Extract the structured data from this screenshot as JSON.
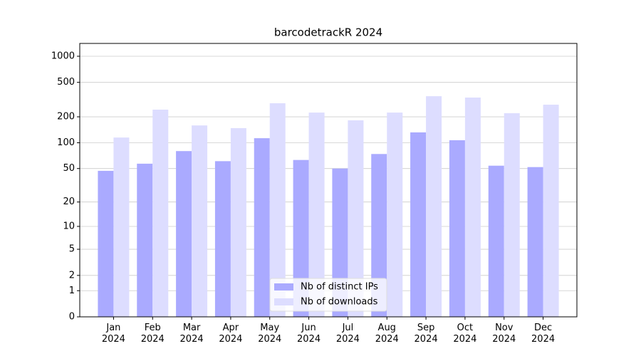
{
  "chart_data": {
    "type": "bar",
    "title": "barcodetrackR 2024",
    "categories": [
      "Jan\n2024",
      "Feb\n2024",
      "Mar\n2024",
      "Apr\n2024",
      "May\n2024",
      "Jun\n2024",
      "Jul\n2024",
      "Aug\n2024",
      "Sep\n2024",
      "Oct\n2024",
      "Nov\n2024",
      "Dec\n2024"
    ],
    "series": [
      {
        "name": "Nb of distinct IPs",
        "color": "#aaaaff",
        "values": [
          47,
          57,
          80,
          61,
          113,
          63,
          50,
          74,
          132,
          107,
          54,
          52
        ]
      },
      {
        "name": "Nb of downloads",
        "color": "#ddddff",
        "values": [
          115,
          242,
          159,
          148,
          287,
          224,
          182,
          224,
          346,
          334,
          220,
          276
        ]
      }
    ],
    "yscale": "log1p",
    "ylim": [
      0,
      1405
    ],
    "yticks": [
      0,
      1,
      2,
      5,
      10,
      20,
      50,
      100,
      200,
      500,
      1000
    ],
    "grid": true,
    "legend": "lower center"
  }
}
